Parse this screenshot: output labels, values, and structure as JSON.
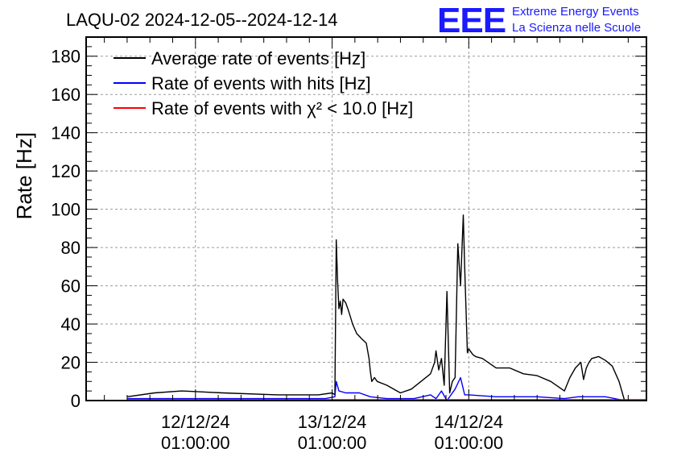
{
  "chart_data": {
    "type": "line",
    "title": "LAQU-02 2024-12-05--2024-12-14",
    "ylabel": "Rate [Hz]",
    "xlabel": "",
    "ylim": [
      0,
      190
    ],
    "xlim": [
      11.2,
      15.3
    ],
    "yticks": [
      0,
      20,
      40,
      60,
      80,
      100,
      120,
      140,
      160,
      180
    ],
    "xticks": [
      {
        "x": 12.0,
        "line1": "12/12/24",
        "line2": "01:00:00"
      },
      {
        "x": 13.0,
        "line1": "13/12/24",
        "line2": "01:00:00"
      },
      {
        "x": 14.0,
        "line1": "14/12/24",
        "line2": "01:00:00"
      }
    ],
    "grid": true,
    "legend_position": "top-left",
    "series": [
      {
        "name": "Average rate of events [Hz]",
        "color": "#000000",
        "x": [
          11.5,
          11.7,
          11.9,
          12.2,
          12.6,
          12.9,
          13.0,
          13.02,
          13.03,
          13.04,
          13.05,
          13.06,
          13.07,
          13.08,
          13.1,
          13.12,
          13.15,
          13.18,
          13.22,
          13.25,
          13.27,
          13.28,
          13.29,
          13.31,
          13.33,
          13.4,
          13.5,
          13.58,
          13.65,
          13.72,
          13.75,
          13.76,
          13.78,
          13.8,
          13.82,
          13.84,
          13.86,
          13.88,
          13.9,
          13.92,
          13.94,
          13.96,
          13.97,
          13.99,
          14.0,
          14.01,
          14.02,
          14.03,
          14.05,
          14.1,
          14.2,
          14.3,
          14.4,
          14.5,
          14.6,
          14.7,
          14.74,
          14.78,
          14.82,
          14.84,
          14.86,
          14.88,
          14.9,
          14.95,
          15.0,
          15.05,
          15.1,
          15.14
        ],
        "values": [
          2,
          4,
          5,
          4,
          3,
          3,
          4,
          3,
          84,
          62,
          48,
          52,
          45,
          53,
          51,
          47,
          40,
          35,
          32,
          30,
          22,
          15,
          10,
          12,
          10,
          8,
          4,
          6,
          10,
          14,
          20,
          26,
          16,
          22,
          8,
          57,
          4,
          10,
          12,
          82,
          60,
          97,
          70,
          25,
          27,
          26,
          25,
          24,
          23,
          22,
          17,
          17,
          14,
          13,
          10,
          5,
          12,
          17,
          20,
          11,
          17,
          20,
          22,
          23,
          21,
          18,
          10,
          0
        ]
      },
      {
        "name": "Rate of events with hits [Hz]",
        "color": "#0000ff",
        "x": [
          11.5,
          12.0,
          12.5,
          12.95,
          13.02,
          13.03,
          13.05,
          13.1,
          13.2,
          13.28,
          13.4,
          13.6,
          13.72,
          13.76,
          13.8,
          13.84,
          13.9,
          13.94,
          13.97,
          14.0,
          14.2,
          14.5,
          14.7,
          14.8,
          15.0,
          15.14
        ],
        "values": [
          1,
          1,
          1,
          1,
          2,
          10,
          5,
          4,
          4,
          2,
          1,
          1,
          3,
          1,
          5,
          0,
          6,
          12,
          3,
          3,
          2,
          2,
          1,
          2,
          2,
          0
        ]
      },
      {
        "name": "Rate of events with χ² < 10.0 [Hz]",
        "color": "#ff0000",
        "x": [
          11.5,
          15.3
        ],
        "values": [
          0.3,
          0.3
        ]
      }
    ]
  },
  "logo": {
    "mark": "EEE",
    "line1": "Extreme Energy Events",
    "line2": "La Scienza nelle Scuole"
  }
}
